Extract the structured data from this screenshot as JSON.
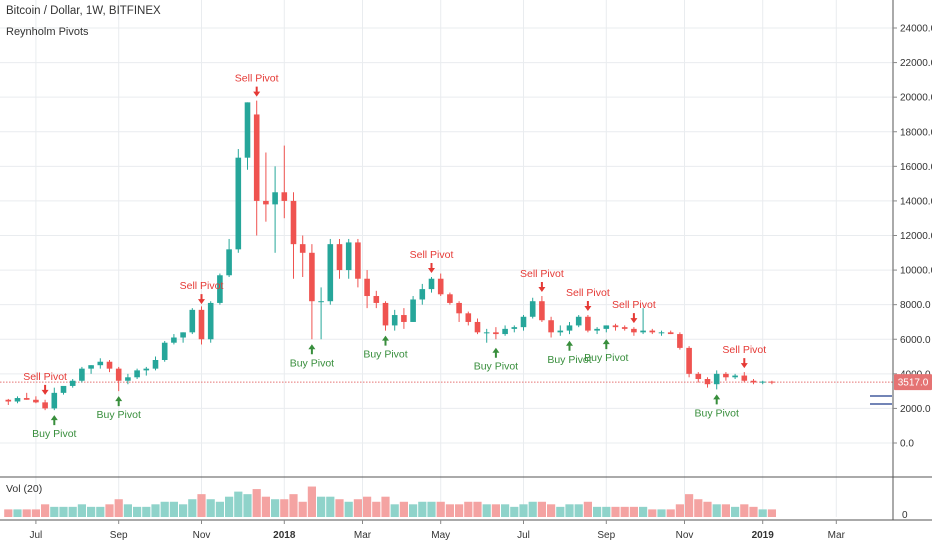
{
  "header": {
    "title": "Bitcoin / Dollar, 1W, BITFINEX",
    "indicator": "Reynholm Pivots",
    "volume_label": "Vol (20)"
  },
  "colors": {
    "up": "#26a69a",
    "down": "#ef5350",
    "vol_up": "#8fd3ca",
    "vol_down": "#f4a3a2",
    "buy_text": "#388e3c",
    "sell_text": "#e53935",
    "price_line": "#e57373",
    "grid": "#e9ecef"
  },
  "chart_data": {
    "type": "candlestick",
    "price_axis": {
      "ylim": [
        -1000,
        25000
      ],
      "ticks": [
        0,
        2000,
        4000,
        6000,
        8000,
        10000,
        12000,
        14000,
        16000,
        18000,
        20000,
        22000,
        24000
      ],
      "tick_labels": [
        "0.0",
        "2000.0",
        "4000.0",
        "6000.0",
        "8000.0",
        "10000.0",
        "12000.0",
        "14000.0",
        "16000.0",
        "18000.0",
        "20000.0",
        "22000.0",
        "24000.0"
      ]
    },
    "time_axis": {
      "labels": [
        "Jul",
        "Sep",
        "Nov",
        "2018",
        "Mar",
        "May",
        "Jul",
        "Sep",
        "Nov",
        "2019",
        "Mar"
      ],
      "label_weeks": [
        3,
        12,
        21,
        30,
        38.5,
        47,
        56,
        65,
        73.5,
        82,
        90
      ]
    },
    "last_price": 3517.0,
    "last_price_label": "3517.0",
    "candles": [
      [
        2500,
        2550,
        2200,
        2400,
        3
      ],
      [
        2400,
        2700,
        2300,
        2600,
        3
      ],
      [
        2600,
        2900,
        2500,
        2500,
        3
      ],
      [
        2500,
        2700,
        2300,
        2350,
        3
      ],
      [
        2350,
        2500,
        1900,
        2000,
        5
      ],
      [
        2000,
        3200,
        1900,
        2900,
        4
      ],
      [
        2900,
        3300,
        2800,
        3300,
        4
      ],
      [
        3300,
        3700,
        3200,
        3600,
        4
      ],
      [
        3600,
        4400,
        3500,
        4300,
        5
      ],
      [
        4300,
        4500,
        4000,
        4500,
        4
      ],
      [
        4500,
        4900,
        4300,
        4700,
        4
      ],
      [
        4700,
        4800,
        4100,
        4300,
        5
      ],
      [
        4300,
        4400,
        3000,
        3600,
        7
      ],
      [
        3600,
        4000,
        3400,
        3800,
        5
      ],
      [
        3800,
        4300,
        3700,
        4200,
        4
      ],
      [
        4200,
        4400,
        3900,
        4300,
        4
      ],
      [
        4300,
        5000,
        4200,
        4800,
        5
      ],
      [
        4800,
        5900,
        4700,
        5800,
        6
      ],
      [
        5800,
        6300,
        5700,
        6100,
        6
      ],
      [
        6100,
        6400,
        5800,
        6400,
        5
      ],
      [
        6400,
        7800,
        6300,
        7700,
        7
      ],
      [
        7700,
        7900,
        5700,
        6000,
        9
      ],
      [
        6000,
        8200,
        5800,
        8100,
        7
      ],
      [
        8100,
        9800,
        8000,
        9700,
        6
      ],
      [
        9700,
        11800,
        9600,
        11200,
        8
      ],
      [
        11200,
        17000,
        11000,
        16500,
        10
      ],
      [
        16500,
        19700,
        15800,
        19700,
        9
      ],
      [
        19000,
        19800,
        12000,
        14000,
        11
      ],
      [
        14000,
        16800,
        12800,
        13800,
        8
      ],
      [
        13800,
        16000,
        11000,
        14500,
        7
      ],
      [
        14500,
        17200,
        13000,
        14000,
        7
      ],
      [
        14000,
        14500,
        9500,
        11500,
        9
      ],
      [
        11500,
        12000,
        9600,
        11000,
        6
      ],
      [
        11000,
        11500,
        6000,
        8200,
        12
      ],
      [
        8200,
        9000,
        6000,
        8200,
        8
      ],
      [
        8200,
        11800,
        8000,
        11500,
        8
      ],
      [
        11500,
        11800,
        9500,
        10000,
        7
      ],
      [
        10000,
        11800,
        9500,
        11600,
        6
      ],
      [
        11600,
        11800,
        9000,
        9500,
        7
      ],
      [
        9500,
        10000,
        7800,
        8500,
        8
      ],
      [
        8500,
        8800,
        7800,
        8100,
        6
      ],
      [
        8100,
        8200,
        6500,
        6800,
        8
      ],
      [
        6800,
        7700,
        6500,
        7400,
        5
      ],
      [
        7400,
        7800,
        6600,
        7000,
        6
      ],
      [
        7000,
        8500,
        7000,
        8300,
        5
      ],
      [
        8300,
        9200,
        8000,
        8900,
        6
      ],
      [
        8900,
        9600,
        8700,
        9500,
        6
      ],
      [
        9500,
        9800,
        8500,
        8600,
        6
      ],
      [
        8600,
        8700,
        8000,
        8100,
        5
      ],
      [
        8100,
        8200,
        7000,
        7500,
        5
      ],
      [
        7500,
        7600,
        6800,
        7000,
        6
      ],
      [
        7000,
        7200,
        6300,
        6400,
        6
      ],
      [
        6400,
        6600,
        5800,
        6400,
        5
      ],
      [
        6400,
        6700,
        6000,
        6300,
        5
      ],
      [
        6300,
        6800,
        6200,
        6600,
        5
      ],
      [
        6600,
        6800,
        6400,
        6700,
        4
      ],
      [
        6700,
        7400,
        6500,
        7300,
        5
      ],
      [
        7300,
        8400,
        7200,
        8200,
        6
      ],
      [
        8200,
        8500,
        7000,
        7100,
        6
      ],
      [
        7100,
        7300,
        6100,
        6400,
        5
      ],
      [
        6400,
        6800,
        6200,
        6500,
        4
      ],
      [
        6500,
        7000,
        6300,
        6800,
        5
      ],
      [
        6800,
        7400,
        6700,
        7300,
        5
      ],
      [
        7300,
        7400,
        6400,
        6500,
        6
      ],
      [
        6500,
        6700,
        6300,
        6600,
        4
      ],
      [
        6600,
        6800,
        6400,
        6800,
        4
      ],
      [
        6800,
        6900,
        6500,
        6700,
        4
      ],
      [
        6700,
        6800,
        6500,
        6600,
        4
      ],
      [
        6600,
        6700,
        6200,
        6400,
        4
      ],
      [
        6400,
        7800,
        6300,
        6500,
        4
      ],
      [
        6500,
        6600,
        6300,
        6400,
        3
      ],
      [
        6400,
        6500,
        6200,
        6400,
        3
      ],
      [
        6400,
        6500,
        6300,
        6300,
        3
      ],
      [
        6300,
        6400,
        5400,
        5500,
        5
      ],
      [
        5500,
        5600,
        3800,
        4000,
        9
      ],
      [
        4000,
        4100,
        3500,
        3700,
        7
      ],
      [
        3700,
        3800,
        3200,
        3400,
        6
      ],
      [
        3400,
        4200,
        3100,
        4000,
        5
      ],
      [
        4000,
        4100,
        3600,
        3800,
        5
      ],
      [
        3800,
        4000,
        3700,
        3900,
        4
      ],
      [
        3900,
        4100,
        3500,
        3600,
        5
      ],
      [
        3600,
        3700,
        3400,
        3500,
        4
      ],
      [
        3500,
        3600,
        3400,
        3550,
        3
      ],
      [
        3550,
        3600,
        3400,
        3517,
        3
      ]
    ],
    "pivots": [
      {
        "type": "sell",
        "label": "Sell Pivot",
        "week": 4,
        "price": 2550
      },
      {
        "type": "buy",
        "label": "Buy Pivot",
        "week": 5,
        "price": 1900
      },
      {
        "type": "buy",
        "label": "Buy Pivot",
        "week": 12,
        "price": 3000
      },
      {
        "type": "sell",
        "label": "Sell Pivot",
        "week": 21,
        "price": 7800
      },
      {
        "type": "sell",
        "label": "Sell Pivot",
        "week": 27,
        "price": 19800
      },
      {
        "type": "buy",
        "label": "Buy Pivot",
        "week": 33,
        "price": 6000
      },
      {
        "type": "buy",
        "label": "Buy Pivot",
        "week": 41,
        "price": 6500
      },
      {
        "type": "sell",
        "label": "Sell Pivot",
        "week": 46,
        "price": 9600
      },
      {
        "type": "buy",
        "label": "Buy Pivot",
        "week": 53,
        "price": 5800
      },
      {
        "type": "sell",
        "label": "Sell Pivot",
        "week": 58,
        "price": 8500
      },
      {
        "type": "buy",
        "label": "Buy Pivot",
        "week": 61,
        "price": 6200
      },
      {
        "type": "sell",
        "label": "Sell Pivot",
        "week": 63,
        "price": 7400
      },
      {
        "type": "buy",
        "label": "Buy Pivot",
        "week": 65,
        "price": 6300
      },
      {
        "type": "sell",
        "label": "Sell Pivot",
        "week": 68,
        "price": 6700
      },
      {
        "type": "buy",
        "label": "Buy Pivot",
        "week": 77,
        "price": 3100
      },
      {
        "type": "sell",
        "label": "Sell Pivot",
        "week": 80,
        "price": 4100
      }
    ],
    "volume_axis": {
      "ticks": [
        0
      ],
      "tick_labels": [
        "0"
      ]
    }
  }
}
